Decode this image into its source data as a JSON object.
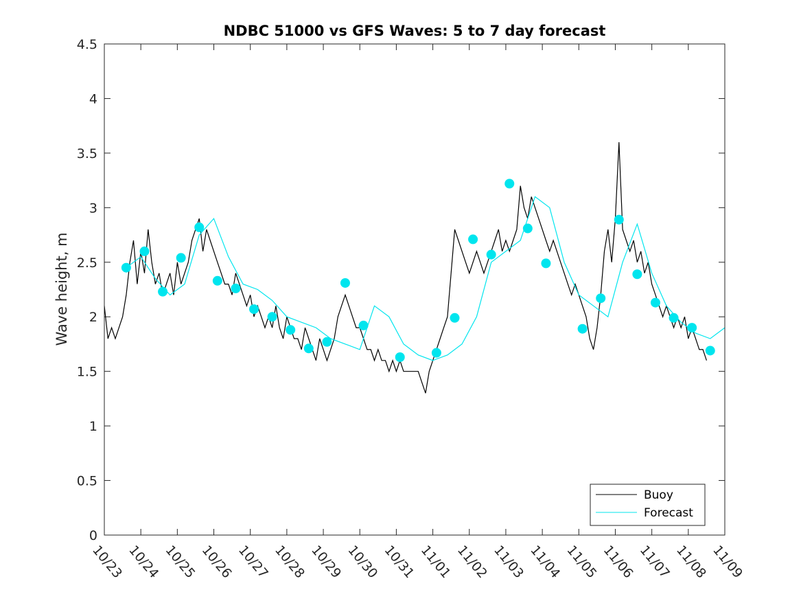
{
  "chart_data": {
    "type": "line",
    "title": "NDBC 51000 vs GFS Waves: 5 to 7 day forecast",
    "xlabel": "",
    "ylabel": "Wave height, m",
    "xlim": [
      0,
      17
    ],
    "ylim": [
      0,
      4.5
    ],
    "yticks": [
      0,
      0.5,
      1,
      1.5,
      2,
      2.5,
      3,
      3.5,
      4,
      4.5
    ],
    "ytick_labels": [
      "0",
      "0.5",
      "1",
      "1.5",
      "2",
      "2.5",
      "3",
      "3.5",
      "4",
      "4.5"
    ],
    "xtick_labels": [
      "10/23",
      "10/24",
      "10/25",
      "10/26",
      "10/27",
      "10/28",
      "10/29",
      "10/30",
      "10/31",
      "11/01",
      "11/02",
      "11/03",
      "11/04",
      "11/05",
      "11/06",
      "11/07",
      "11/08",
      "11/09"
    ],
    "x_units": "days since 10/23 00Z",
    "legend_position": "bottom-right",
    "colors": {
      "buoy": "#000000",
      "forecast": "#00e5ee"
    },
    "series": [
      {
        "name": "Buoy",
        "style": "line",
        "x": [
          0,
          0.1,
          0.2,
          0.3,
          0.4,
          0.5,
          0.6,
          0.7,
          0.8,
          0.9,
          1.0,
          1.1,
          1.2,
          1.3,
          1.4,
          1.5,
          1.6,
          1.7,
          1.8,
          1.9,
          2.0,
          2.1,
          2.2,
          2.3,
          2.4,
          2.5,
          2.6,
          2.7,
          2.8,
          2.9,
          3.0,
          3.1,
          3.2,
          3.3,
          3.4,
          3.5,
          3.6,
          3.7,
          3.8,
          3.9,
          4.0,
          4.1,
          4.2,
          4.3,
          4.4,
          4.5,
          4.6,
          4.7,
          4.8,
          4.9,
          5.0,
          5.1,
          5.2,
          5.3,
          5.4,
          5.5,
          5.6,
          5.7,
          5.8,
          5.9,
          6.0,
          6.1,
          6.2,
          6.3,
          6.4,
          6.5,
          6.6,
          6.7,
          6.8,
          6.9,
          7.0,
          7.1,
          7.2,
          7.3,
          7.4,
          7.5,
          7.6,
          7.7,
          7.8,
          7.9,
          8.0,
          8.1,
          8.2,
          8.3,
          8.4,
          8.5,
          8.6,
          8.7,
          8.8,
          8.9,
          9.0,
          9.1,
          9.2,
          9.3,
          9.4,
          9.5,
          9.6,
          9.7,
          9.8,
          9.9,
          10.0,
          10.1,
          10.2,
          10.3,
          10.4,
          10.5,
          10.6,
          10.7,
          10.8,
          10.9,
          11.0,
          11.1,
          11.2,
          11.3,
          11.4,
          11.5,
          11.6,
          11.7,
          11.8,
          11.9,
          12.0,
          12.1,
          12.2,
          12.3,
          12.4,
          12.5,
          12.6,
          12.7,
          12.8,
          12.9,
          13.0,
          13.1,
          13.2,
          13.3,
          13.4,
          13.5,
          13.6,
          13.7,
          13.8,
          13.9,
          14.0,
          14.1,
          14.2,
          14.3,
          14.4,
          14.5,
          14.6,
          14.7,
          14.8,
          14.9,
          15.0,
          15.1,
          15.2,
          15.3,
          15.4,
          15.5,
          15.6,
          15.7,
          15.8,
          15.9,
          16.0,
          16.1,
          16.2,
          16.3,
          16.4,
          16.5
        ],
        "y": [
          2.1,
          1.8,
          1.9,
          1.8,
          1.9,
          2.0,
          2.2,
          2.5,
          2.7,
          2.3,
          2.6,
          2.4,
          2.8,
          2.5,
          2.3,
          2.4,
          2.2,
          2.3,
          2.4,
          2.2,
          2.5,
          2.3,
          2.4,
          2.5,
          2.7,
          2.8,
          2.9,
          2.6,
          2.8,
          2.7,
          2.6,
          2.5,
          2.4,
          2.3,
          2.3,
          2.2,
          2.4,
          2.3,
          2.2,
          2.1,
          2.2,
          2.0,
          2.1,
          2.0,
          1.9,
          2.0,
          1.9,
          2.1,
          1.9,
          1.8,
          2.0,
          1.9,
          1.8,
          1.8,
          1.7,
          1.9,
          1.8,
          1.7,
          1.6,
          1.8,
          1.7,
          1.6,
          1.7,
          1.8,
          2.0,
          2.1,
          2.2,
          2.1,
          2.0,
          1.9,
          1.9,
          1.8,
          1.7,
          1.7,
          1.6,
          1.7,
          1.6,
          1.6,
          1.5,
          1.6,
          1.5,
          1.6,
          1.5,
          1.5,
          1.5,
          1.5,
          1.5,
          1.4,
          1.3,
          1.5,
          1.6,
          1.7,
          1.8,
          1.9,
          2.0,
          2.4,
          2.8,
          2.7,
          2.6,
          2.5,
          2.4,
          2.5,
          2.6,
          2.5,
          2.4,
          2.5,
          2.6,
          2.7,
          2.8,
          2.6,
          2.7,
          2.6,
          2.7,
          2.8,
          3.2,
          3.0,
          2.9,
          3.1,
          3.0,
          2.9,
          2.8,
          2.7,
          2.6,
          2.7,
          2.6,
          2.5,
          2.4,
          2.3,
          2.2,
          2.3,
          2.2,
          2.1,
          2.0,
          1.8,
          1.7,
          1.9,
          2.2,
          2.6,
          2.8,
          2.5,
          2.9,
          3.6,
          2.8,
          2.7,
          2.6,
          2.7,
          2.5,
          2.6,
          2.4,
          2.5,
          2.3,
          2.2,
          2.1,
          2.0,
          2.1,
          2.0,
          1.9,
          2.0,
          1.9,
          2.0,
          1.8,
          1.9,
          1.8,
          1.7,
          1.7,
          1.6
        ]
      },
      {
        "name": "Forecast",
        "style": "line",
        "x": [
          0.6,
          1.0,
          1.4,
          1.8,
          2.2,
          2.6,
          3.0,
          3.4,
          3.8,
          4.2,
          4.6,
          5.0,
          5.4,
          5.8,
          6.2,
          6.6,
          7.0,
          7.4,
          7.8,
          8.2,
          8.6,
          9.0,
          9.4,
          9.8,
          10.2,
          10.6,
          11.0,
          11.4,
          11.8,
          12.2,
          12.6,
          13.0,
          13.4,
          13.8,
          14.2,
          14.6,
          15.0,
          15.4,
          15.8,
          16.2,
          16.6,
          17.0
        ],
        "y": [
          2.45,
          2.55,
          2.35,
          2.2,
          2.3,
          2.75,
          2.9,
          2.55,
          2.3,
          2.25,
          2.15,
          2.0,
          1.95,
          1.9,
          1.8,
          1.75,
          1.7,
          2.1,
          2.0,
          1.75,
          1.65,
          1.6,
          1.65,
          1.75,
          2.0,
          2.5,
          2.6,
          2.7,
          3.1,
          3.0,
          2.5,
          2.2,
          2.1,
          2.0,
          2.5,
          2.85,
          2.4,
          2.1,
          1.95,
          1.85,
          1.8,
          1.9
        ]
      },
      {
        "name": "Forecast",
        "style": "markers",
        "x": [
          0.6,
          1.1,
          1.6,
          2.1,
          2.6,
          3.1,
          3.6,
          4.1,
          4.6,
          5.1,
          5.6,
          6.1,
          6.6,
          7.1,
          8.1,
          9.1,
          9.6,
          10.1,
          10.6,
          11.1,
          11.6,
          12.1,
          13.1,
          13.6,
          14.1,
          14.6,
          15.1,
          15.6,
          16.1,
          16.6
        ],
        "y": [
          2.45,
          2.6,
          2.23,
          2.54,
          2.82,
          2.33,
          2.26,
          2.07,
          2.0,
          1.88,
          1.71,
          1.77,
          2.31,
          1.92,
          1.63,
          1.67,
          1.99,
          2.71,
          2.57,
          3.22,
          2.81,
          2.49,
          1.89,
          2.17,
          2.89,
          2.39,
          2.13,
          1.99,
          1.9,
          1.69
        ]
      }
    ],
    "legend": [
      "Buoy",
      "Forecast"
    ]
  }
}
